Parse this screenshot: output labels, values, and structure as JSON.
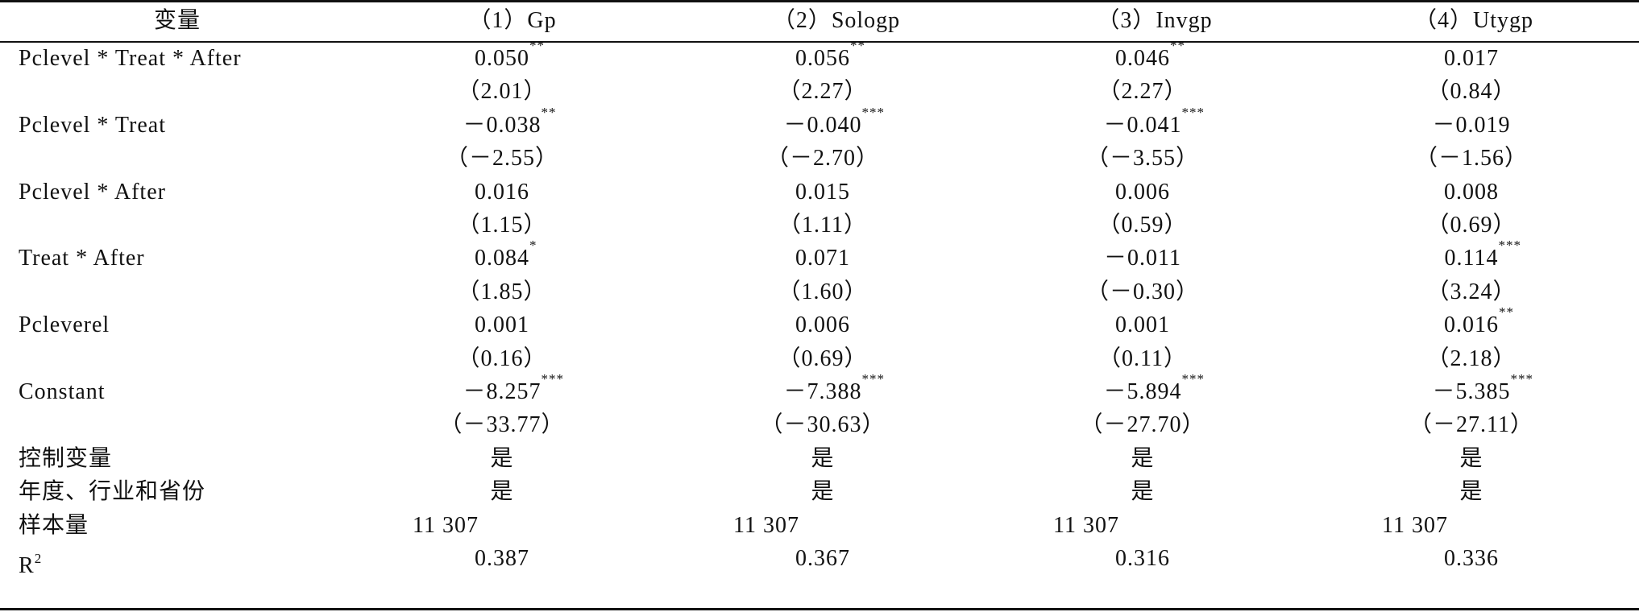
{
  "table": {
    "header": [
      "变量",
      "（1）Gp",
      "（2）Sologp",
      "（3）Invgp",
      "（4）Utygp"
    ],
    "rows": [
      {
        "label": "Pclevel * Treat * After",
        "cells": [
          {
            "value": "0.050",
            "stars": "**"
          },
          {
            "value": "0.056",
            "stars": "**"
          },
          {
            "value": "0.046",
            "stars": "**"
          },
          {
            "value": "0.017"
          }
        ]
      },
      {
        "cells": [
          {
            "value": "（2.01）"
          },
          {
            "value": "（2.27）"
          },
          {
            "value": "（2.27）"
          },
          {
            "value": "（0.84）"
          }
        ]
      },
      {
        "label": "Pclevel * Treat",
        "cells": [
          {
            "value": "－0.038",
            "stars": "**"
          },
          {
            "value": "－0.040",
            "stars": "***"
          },
          {
            "value": "－0.041",
            "stars": "***"
          },
          {
            "value": "－0.019"
          }
        ]
      },
      {
        "cells": [
          {
            "value": "（－2.55）"
          },
          {
            "value": "（－2.70）"
          },
          {
            "value": "（－3.55）"
          },
          {
            "value": "（－1.56）"
          }
        ]
      },
      {
        "label": "Pclevel * After",
        "cells": [
          {
            "value": "0.016"
          },
          {
            "value": "0.015"
          },
          {
            "value": "0.006"
          },
          {
            "value": "0.008"
          }
        ]
      },
      {
        "cells": [
          {
            "value": "（1.15）"
          },
          {
            "value": "（1.11）"
          },
          {
            "value": "（0.59）"
          },
          {
            "value": "（0.69）"
          }
        ]
      },
      {
        "label": "Treat * After",
        "cells": [
          {
            "value": "0.084",
            "stars": "*"
          },
          {
            "value": "0.071"
          },
          {
            "value": "－0.011"
          },
          {
            "value": "0.114",
            "stars": "***"
          }
        ]
      },
      {
        "cells": [
          {
            "value": "（1.85）"
          },
          {
            "value": "（1.60）"
          },
          {
            "value": "（－0.30）"
          },
          {
            "value": "（3.24）"
          }
        ]
      },
      {
        "label": "Pcleverel",
        "cells": [
          {
            "value": "0.001"
          },
          {
            "value": "0.006"
          },
          {
            "value": "0.001"
          },
          {
            "value": "0.016",
            "stars": "**"
          }
        ]
      },
      {
        "cells": [
          {
            "value": "（0.16）"
          },
          {
            "value": "（0.69）"
          },
          {
            "value": "（0.11）"
          },
          {
            "value": "（2.18）"
          }
        ]
      },
      {
        "label": "Constant",
        "cells": [
          {
            "value": "－8.257",
            "stars": "***"
          },
          {
            "value": "－7.388",
            "stars": "***"
          },
          {
            "value": "－5.894",
            "stars": "***"
          },
          {
            "value": "－5.385",
            "stars": "***"
          }
        ]
      },
      {
        "cells": [
          {
            "value": "（－33.77）"
          },
          {
            "value": "（－30.63）"
          },
          {
            "value": "（－27.70）"
          },
          {
            "value": "（－27.11）"
          }
        ]
      },
      {
        "label": "控制变量",
        "cells": [
          {
            "value": "是"
          },
          {
            "value": "是"
          },
          {
            "value": "是"
          },
          {
            "value": "是"
          }
        ]
      },
      {
        "label": "年度、行业和省份",
        "cells": [
          {
            "value": "是"
          },
          {
            "value": "是"
          },
          {
            "value": "是"
          },
          {
            "value": "是"
          }
        ]
      },
      {
        "label": "样本量",
        "cells": [
          {
            "value": "11 307"
          },
          {
            "value": "11 307"
          },
          {
            "value": "11 307"
          },
          {
            "value": "11 307"
          }
        ]
      },
      {
        "label": "R",
        "label_sup": "2",
        "cells": [
          {
            "value": "0.387"
          },
          {
            "value": "0.367"
          },
          {
            "value": "0.316"
          },
          {
            "value": "0.336"
          }
        ]
      }
    ]
  }
}
